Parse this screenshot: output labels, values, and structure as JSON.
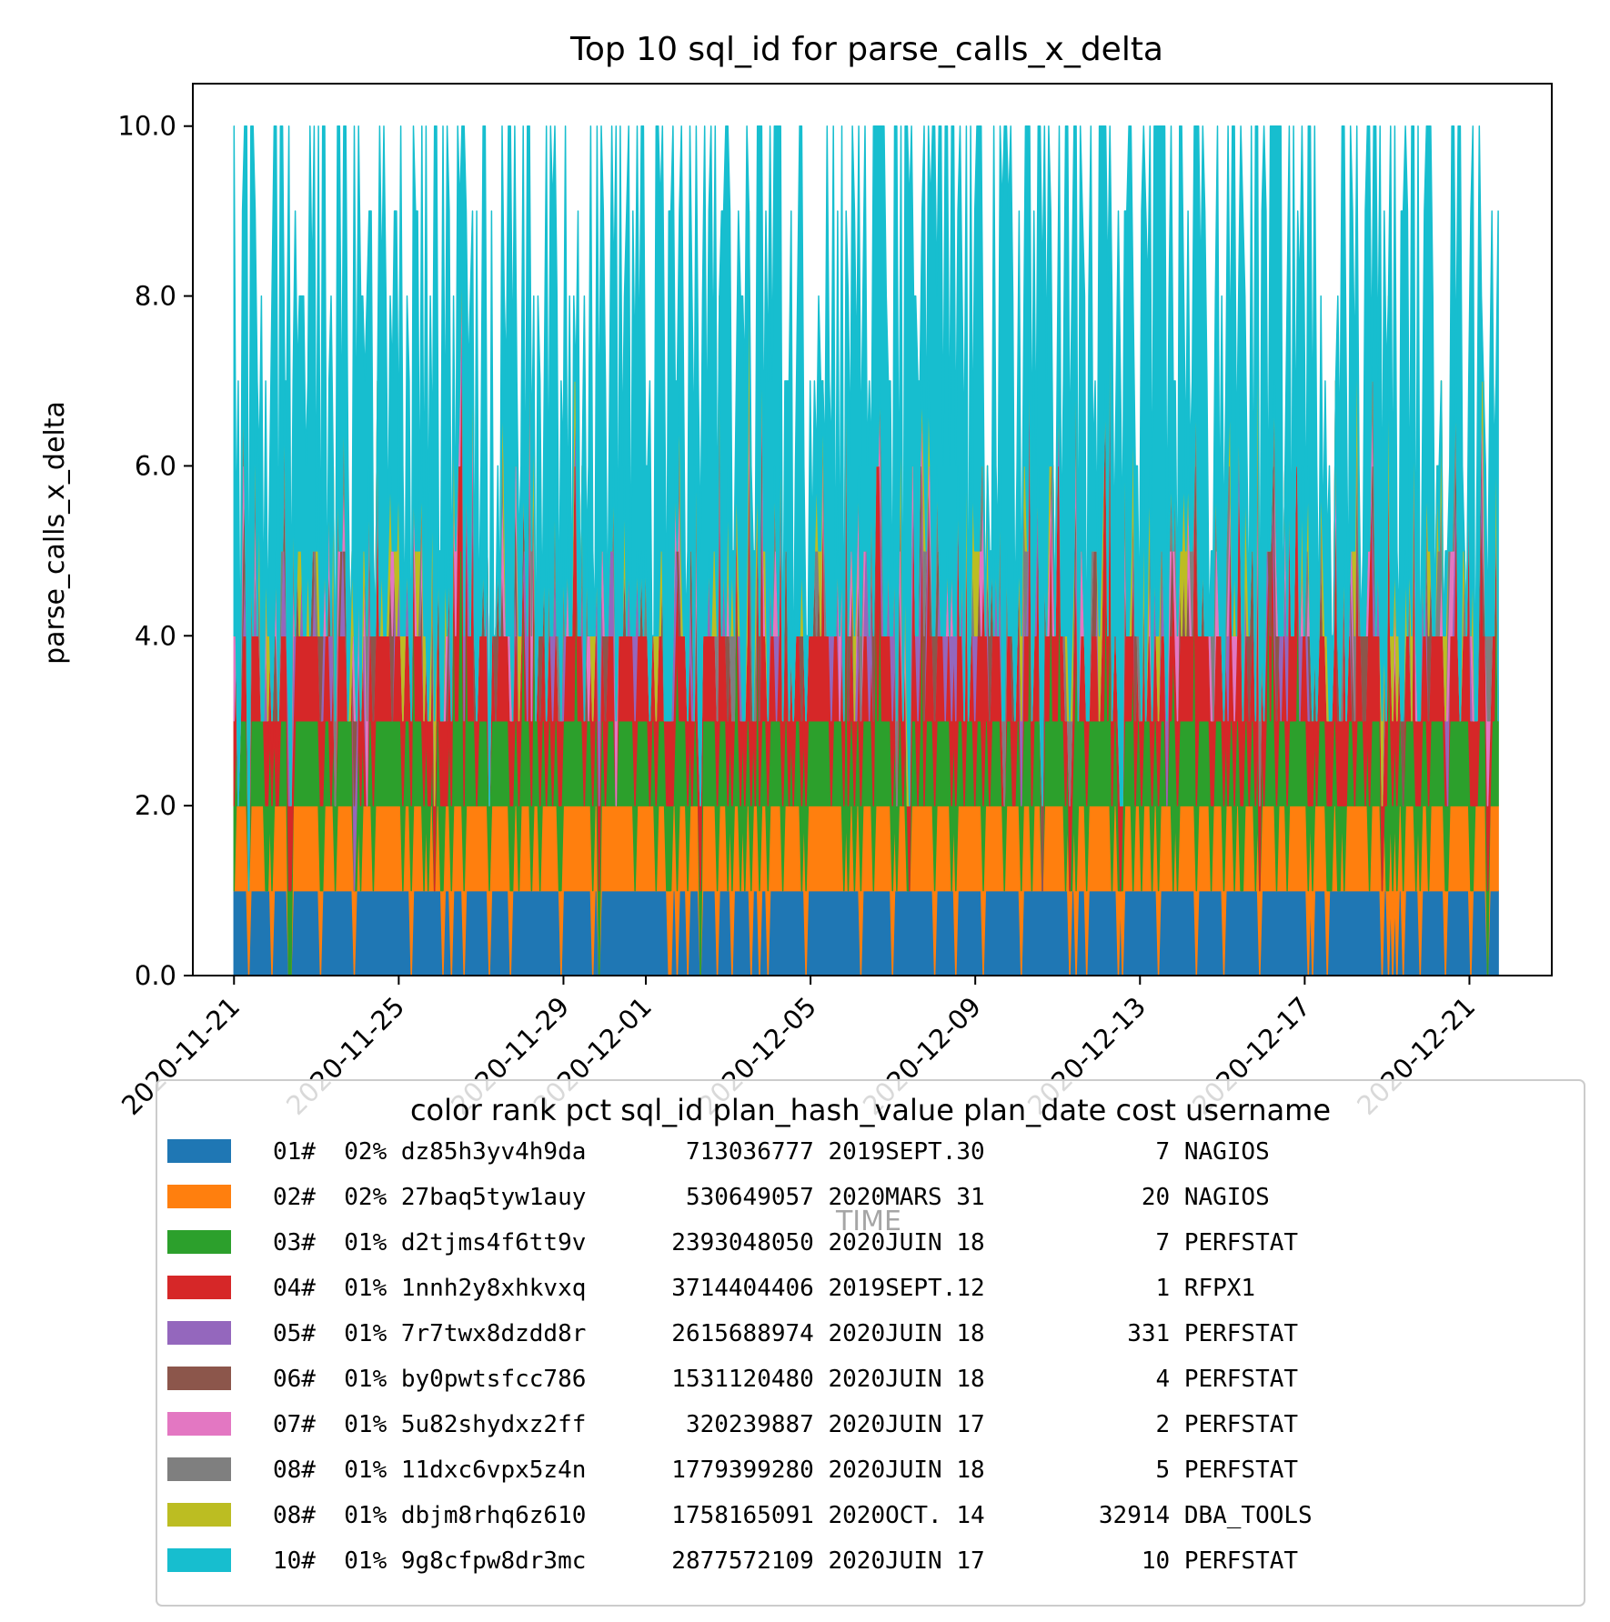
{
  "chart_data": {
    "type": "area",
    "title": "Top 10 sql_id for parse_calls_x_delta",
    "xlabel": "TIME",
    "ylabel": "parse_calls_x_delta",
    "xlim": [
      "2020-11-20",
      "2020-12-23"
    ],
    "ylim": [
      0,
      10.5
    ],
    "x_ticks": [
      "2020-11-21",
      "2020-11-25",
      "2020-11-29",
      "2020-12-01",
      "2020-12-05",
      "2020-12-09",
      "2020-12-13",
      "2020-12-17",
      "2020-12-21"
    ],
    "y_ticks": [
      "0.0",
      "2.0",
      "4.0",
      "6.0",
      "8.0",
      "10.0"
    ],
    "stacked": true,
    "grid": false,
    "legend_position": "bottom",
    "x_start": "2020-11-21",
    "x_end": "2020-12-21",
    "legend": {
      "title": "color rank pct sql_id plan_hash_value plan_date cost username",
      "entries": [
        {
          "color": "#1f77b4",
          "rank": "01#",
          "pct": "02%",
          "sql_id": "dz85h3yv4h9da",
          "plan_hash_value": "713036777",
          "plan_date": "2019SEPT.30",
          "cost": "7",
          "username": "NAGIOS"
        },
        {
          "color": "#ff7f0e",
          "rank": "02#",
          "pct": "02%",
          "sql_id": "27baq5tyw1auy",
          "plan_hash_value": "530649057",
          "plan_date": "2020MARS 31",
          "cost": "20",
          "username": "NAGIOS"
        },
        {
          "color": "#2ca02c",
          "rank": "03#",
          "pct": "01%",
          "sql_id": "d2tjms4f6tt9v",
          "plan_hash_value": "2393048050",
          "plan_date": "2020JUIN 18",
          "cost": "7",
          "username": "PERFSTAT"
        },
        {
          "color": "#d62728",
          "rank": "04#",
          "pct": "01%",
          "sql_id": "1nnh2y8xhkvxq",
          "plan_hash_value": "3714404406",
          "plan_date": "2019SEPT.12",
          "cost": "1",
          "username": "RFPX1"
        },
        {
          "color": "#9467bd",
          "rank": "05#",
          "pct": "01%",
          "sql_id": "7r7twx8dzdd8r",
          "plan_hash_value": "2615688974",
          "plan_date": "2020JUIN 18",
          "cost": "331",
          "username": "PERFSTAT"
        },
        {
          "color": "#8c564b",
          "rank": "06#",
          "pct": "01%",
          "sql_id": "by0pwtsfcc786",
          "plan_hash_value": "1531120480",
          "plan_date": "2020JUIN 18",
          "cost": "4",
          "username": "PERFSTAT"
        },
        {
          "color": "#e377c2",
          "rank": "07#",
          "pct": "01%",
          "sql_id": "5u82shydxz2ff",
          "plan_hash_value": "320239887",
          "plan_date": "2020JUIN 17",
          "cost": "2",
          "username": "PERFSTAT"
        },
        {
          "color": "#7f7f7f",
          "rank": "08#",
          "pct": "01%",
          "sql_id": "11dxc6vpx5z4n",
          "plan_hash_value": "1779399280",
          "plan_date": "2020JUIN 18",
          "cost": "5",
          "username": "PERFSTAT"
        },
        {
          "color": "#bcbd22",
          "rank": "08#",
          "pct": "01%",
          "sql_id": "dbjm8rhq6z610",
          "plan_hash_value": "1758165091",
          "plan_date": "2020OCT. 14",
          "cost": "32914",
          "username": "DBA_TOOLS"
        },
        {
          "color": "#17becf",
          "rank": "10#",
          "pct": "01%",
          "sql_id": "9g8cfpw8dr3mc",
          "plan_hash_value": "2877572109",
          "plan_date": "2020JUIN 17",
          "cost": "10",
          "username": "PERFSTAT"
        }
      ]
    },
    "series_summary": [
      {
        "sql_id": "dz85h3yv4h9da",
        "typical_value": 1,
        "max_value": 1
      },
      {
        "sql_id": "27baq5tyw1auy",
        "typical_value": 1,
        "max_value": 1
      },
      {
        "sql_id": "d2tjms4f6tt9v",
        "typical_value": 1,
        "max_value": 3
      },
      {
        "sql_id": "1nnh2y8xhkvxq",
        "typical_value": 1,
        "max_value": 3
      },
      {
        "sql_id": "7r7twx8dzdd8r",
        "typical_value": 0,
        "max_value": 1
      },
      {
        "sql_id": "by0pwtsfcc786",
        "typical_value": 0,
        "max_value": 1
      },
      {
        "sql_id": "5u82shydxz2ff",
        "typical_value": 0,
        "max_value": 1
      },
      {
        "sql_id": "11dxc6vpx5z4n",
        "typical_value": 0,
        "max_value": 1
      },
      {
        "sql_id": "dbjm8rhq6z610",
        "typical_value": 0,
        "max_value": 1
      },
      {
        "sql_id": "9g8cfpw8dr3mc",
        "typical_value": 3,
        "max_value": 6
      }
    ],
    "stack_total_max": 10.0
  }
}
